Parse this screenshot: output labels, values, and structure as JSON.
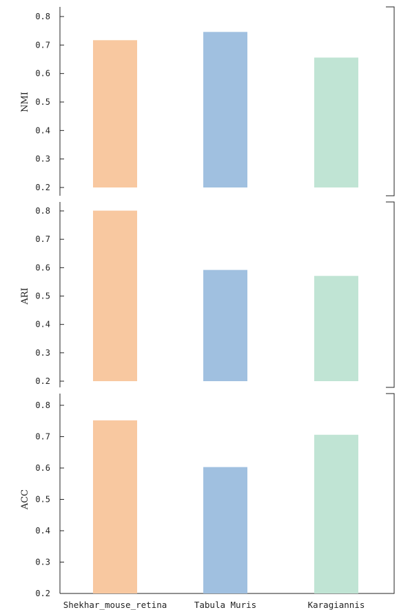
{
  "chart_data": {
    "type": "bar",
    "categories": [
      "Shekhar_mouse_retina",
      "Tabula Muris",
      "Karagiannis"
    ],
    "colors": [
      "#f8c8a0",
      "#a0c0e0",
      "#c0e4d4"
    ],
    "yticks": [
      0.2,
      0.3,
      0.4,
      0.5,
      0.6,
      0.7,
      0.8
    ],
    "ytick_labels": [
      "0.2",
      "0.3",
      "0.4",
      "0.5",
      "0.6",
      "0.7",
      "0.8"
    ],
    "ylim": [
      0.2,
      0.8
    ],
    "grid": false,
    "panels": [
      {
        "ylabel": "NMI",
        "values": [
          0.717,
          0.746,
          0.656
        ]
      },
      {
        "ylabel": "ARI",
        "values": [
          0.801,
          0.592,
          0.571
        ]
      },
      {
        "ylabel": "ACC",
        "values": [
          0.752,
          0.603,
          0.706
        ]
      }
    ]
  }
}
